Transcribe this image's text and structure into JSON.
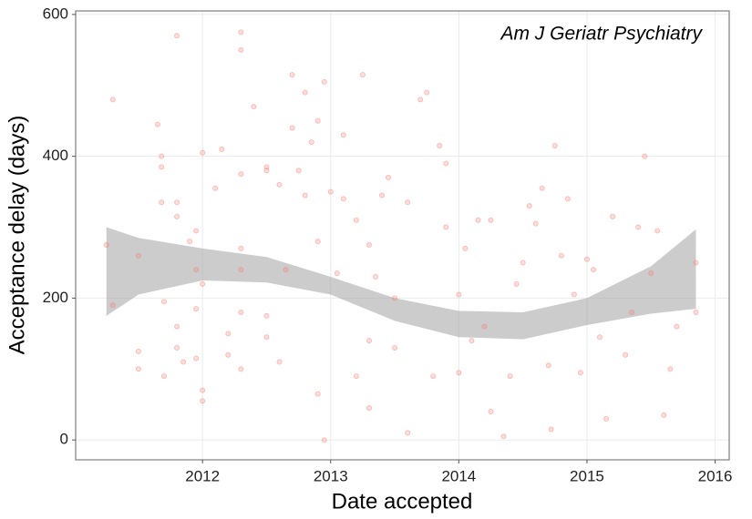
{
  "chart_data": {
    "type": "scatter",
    "xlabel": "Date accepted",
    "ylabel": "Acceptance delay (days)",
    "annotation": "Am J Geriatr Psychiatry",
    "xlim": [
      2011.01,
      2016.11
    ],
    "ylim": [
      -28,
      605
    ],
    "xticks": [
      2012,
      2013,
      2014,
      2015,
      2016
    ],
    "yticks": [
      0,
      200,
      400,
      600
    ],
    "grid": true,
    "series": [
      {
        "color": "#f8766d",
        "x": [
          2011.25,
          2011.3,
          2011.3,
          2011.5,
          2011.5,
          2011.5,
          2011.65,
          2011.68,
          2011.68,
          2011.68,
          2011.7,
          2011.7,
          2011.8,
          2011.8,
          2011.8,
          2011.8,
          2011.8,
          2011.85,
          2011.9,
          2011.95,
          2011.95,
          2011.95,
          2011.95,
          2012.0,
          2012.0,
          2012.0,
          2012.0,
          2012.1,
          2012.15,
          2012.2,
          2012.2,
          2012.3,
          2012.3,
          2012.3,
          2012.3,
          2012.3,
          2012.3,
          2012.3,
          2012.4,
          2012.5,
          2012.5,
          2012.5,
          2012.5,
          2012.6,
          2012.65,
          2012.7,
          2012.7,
          2012.75,
          2012.8,
          2012.8,
          2012.85,
          2012.9,
          2012.9,
          2012.95,
          2012.95,
          2013.0,
          2013.05,
          2013.1,
          2013.1,
          2013.2,
          2013.25,
          2013.3,
          2013.3,
          2013.35,
          2013.4,
          2013.45,
          2013.5,
          2013.5,
          2013.6,
          2013.6,
          2013.7,
          2013.75,
          2013.85,
          2013.9,
          2013.9,
          2014.0,
          2014.0,
          2014.05,
          2014.1,
          2014.15,
          2014.2,
          2014.25,
          2014.35,
          2014.4,
          2014.45,
          2014.5,
          2014.55,
          2014.6,
          2014.65,
          2014.7,
          2014.72,
          2014.75,
          2014.8,
          2014.85,
          2014.9,
          2014.95,
          2015.0,
          2015.05,
          2015.1,
          2015.15,
          2015.2,
          2015.3,
          2015.35,
          2015.4,
          2015.45,
          2015.5,
          2015.55,
          2015.6,
          2015.65,
          2015.7,
          2015.85,
          2015.85,
          2013.2,
          2013.3,
          2013.8,
          2014.25,
          2012.6,
          2012.9
        ],
        "values": [
          275,
          480,
          190,
          125,
          100,
          260,
          445,
          400,
          385,
          335,
          195,
          90,
          570,
          335,
          315,
          160,
          130,
          110,
          280,
          295,
          240,
          185,
          115,
          405,
          70,
          55,
          220,
          355,
          410,
          150,
          120,
          575,
          550,
          375,
          270,
          240,
          180,
          100,
          470,
          385,
          380,
          175,
          145,
          360,
          240,
          515,
          440,
          380,
          490,
          345,
          420,
          450,
          280,
          505,
          0,
          350,
          235,
          430,
          340,
          310,
          515,
          275,
          140,
          230,
          345,
          370,
          200,
          130,
          335,
          10,
          480,
          490,
          415,
          390,
          300,
          205,
          95,
          270,
          140,
          310,
          160,
          310,
          5,
          90,
          220,
          250,
          330,
          305,
          355,
          105,
          15,
          415,
          260,
          340,
          205,
          95,
          255,
          240,
          145,
          30,
          315,
          120,
          180,
          300,
          400,
          235,
          295,
          35,
          100,
          160,
          250,
          180,
          90,
          45,
          90,
          40,
          110,
          65
        ]
      }
    ],
    "band": {
      "color": "#999999",
      "x": [
        2011.25,
        2011.5,
        2012,
        2012.5,
        2013,
        2013.5,
        2014,
        2014.5,
        2015,
        2015.5,
        2015.85
      ],
      "lower": [
        175,
        205,
        225,
        222,
        205,
        168,
        145,
        142,
        162,
        178,
        185
      ],
      "upper": [
        300,
        285,
        270,
        258,
        230,
        200,
        182,
        180,
        200,
        245,
        297
      ]
    }
  }
}
